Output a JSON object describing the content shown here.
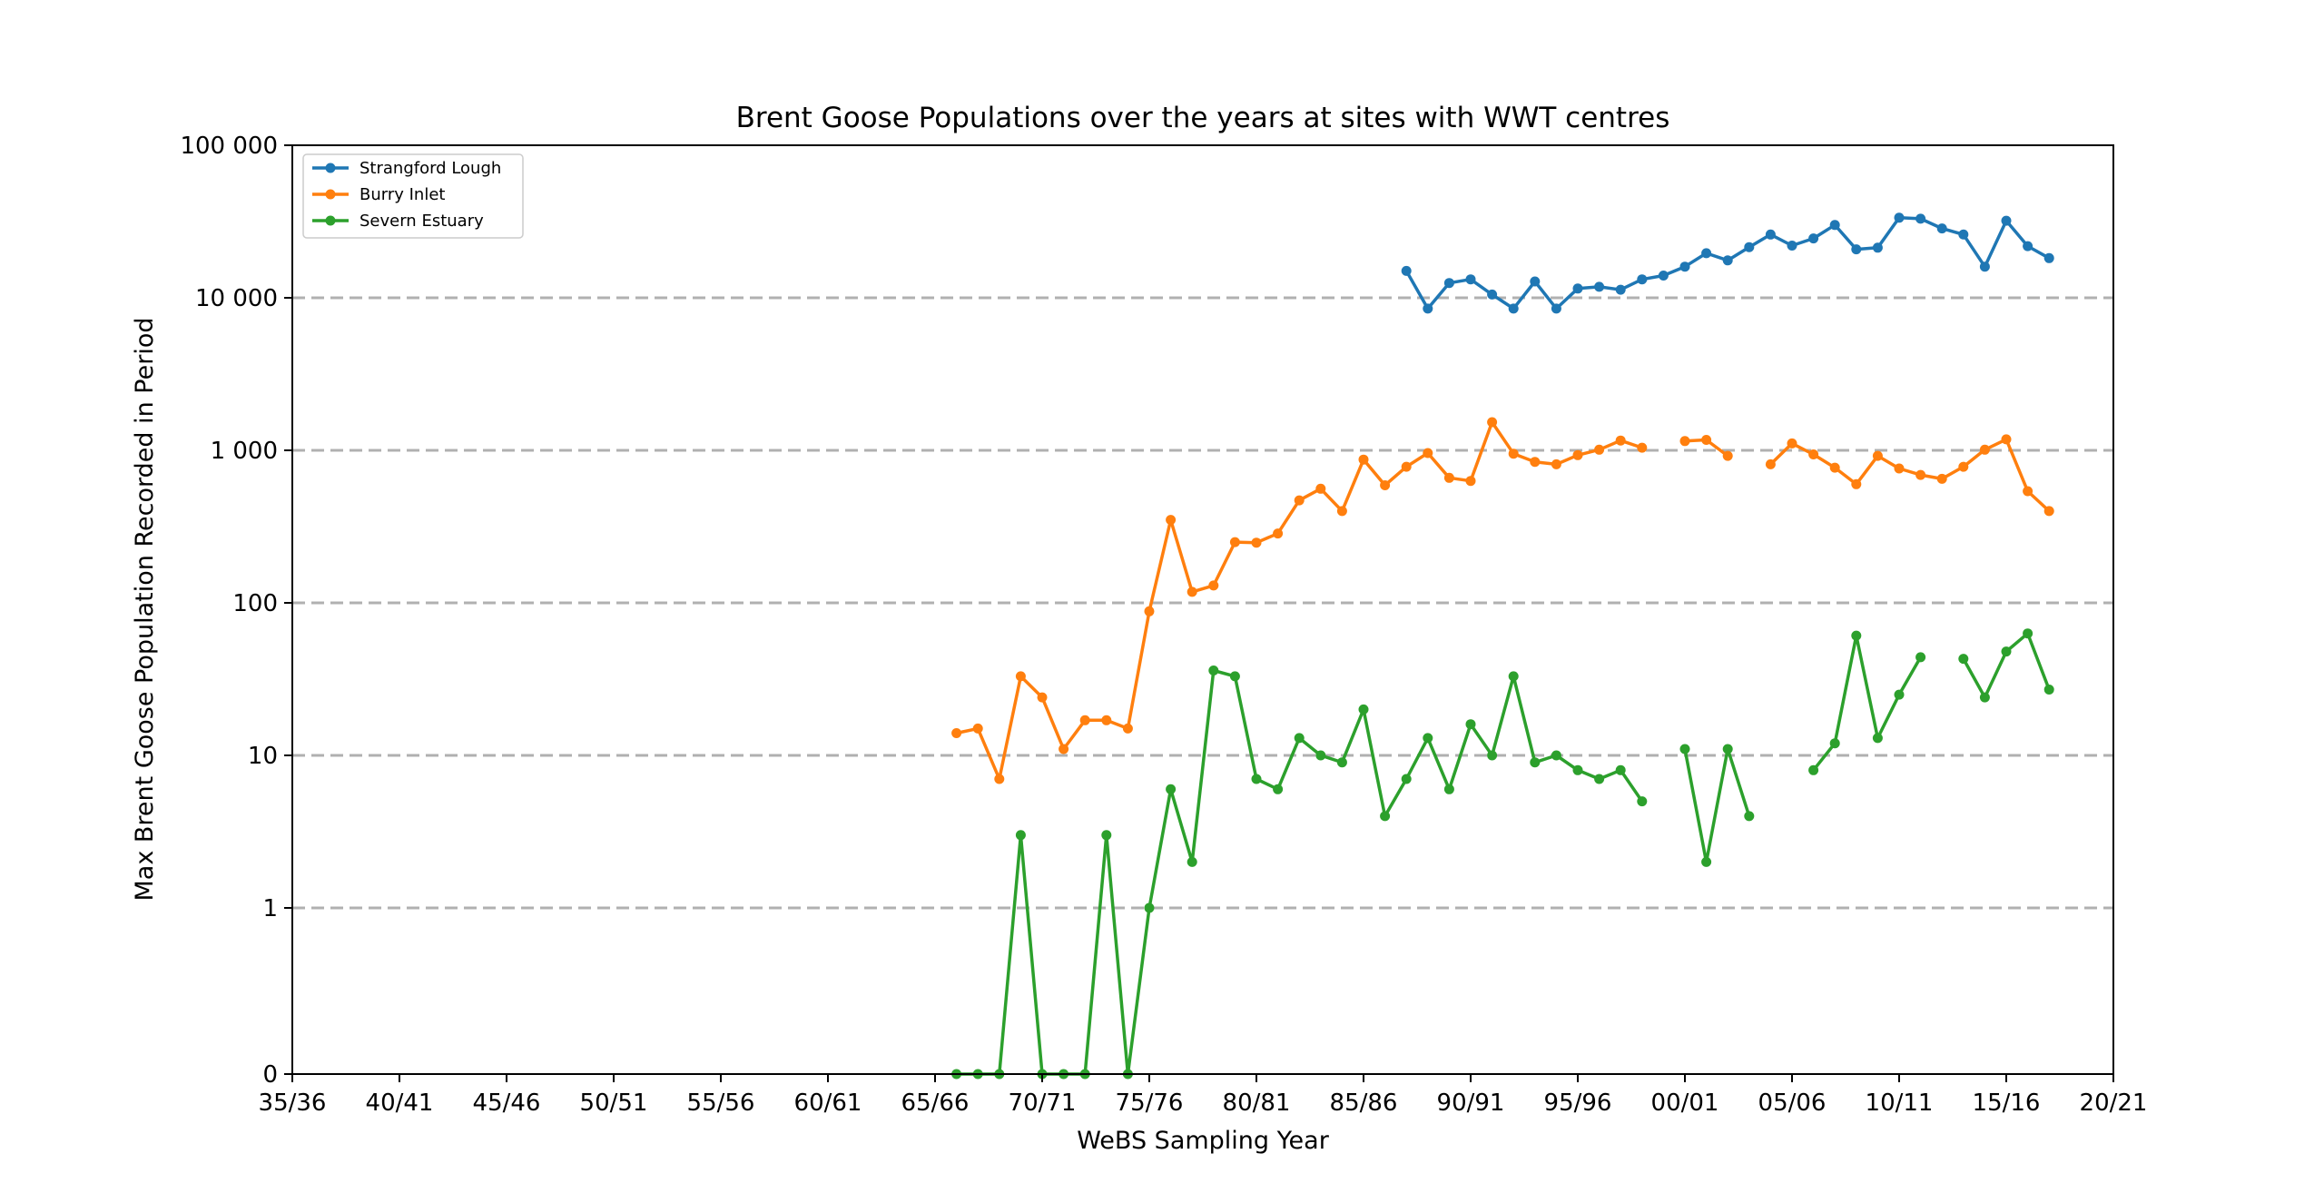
{
  "chart_data": {
    "type": "line",
    "title": "Brent Goose Populations over the years at sites with WWT centres",
    "xlabel": "WeBS Sampling Year",
    "ylabel": "Max Brent Goose Population Recorded in Period",
    "x_tick_labels": [
      "35/36",
      "40/41",
      "45/46",
      "50/51",
      "55/56",
      "60/61",
      "65/66",
      "70/71",
      "75/76",
      "80/81",
      "85/86",
      "90/91",
      "95/96",
      "00/01",
      "05/06",
      "10/11",
      "15/16",
      "20/21"
    ],
    "x_tick_start_years": [
      1935,
      1940,
      1945,
      1950,
      1955,
      1960,
      1965,
      1970,
      1975,
      1980,
      1985,
      1990,
      1995,
      2000,
      2005,
      2010,
      2015,
      2020
    ],
    "xlim": [
      1935,
      2020
    ],
    "y_scale": "symlog",
    "y_tick_labels": [
      "0",
      "1",
      "10",
      "100",
      "1 000",
      "10 000",
      "100 000"
    ],
    "y_tick_values": [
      0,
      1,
      10,
      100,
      1000,
      10000,
      100000
    ],
    "ylim": [
      0,
      100000
    ],
    "grid": "horizontal-dashed",
    "legend_position": "top-left",
    "series": [
      {
        "name": "Strangford Lough",
        "color": "#1f77b4",
        "points": [
          [
            1987,
            15000
          ],
          [
            1988,
            8500
          ],
          [
            1989,
            12500
          ],
          [
            1990,
            13200
          ],
          [
            1991,
            10500
          ],
          [
            1992,
            8500
          ],
          [
            1993,
            12800
          ],
          [
            1994,
            8500
          ],
          [
            1995,
            11500
          ],
          [
            1996,
            11800
          ],
          [
            1997,
            11300
          ],
          [
            1998,
            13200
          ],
          [
            1999,
            14000
          ],
          [
            2000,
            16000
          ],
          [
            2001,
            19600
          ],
          [
            2002,
            17600
          ],
          [
            2003,
            21500
          ],
          [
            2004,
            26000
          ],
          [
            2005,
            22000
          ],
          [
            2006,
            24500
          ],
          [
            2007,
            30000
          ],
          [
            2008,
            20800
          ],
          [
            2009,
            21300
          ],
          [
            2010,
            33500
          ],
          [
            2011,
            33000
          ],
          [
            2012,
            28500
          ],
          [
            2013,
            26000
          ],
          [
            2014,
            16000
          ],
          [
            2015,
            32000
          ],
          [
            2016,
            21800
          ],
          [
            2017,
            18200
          ]
        ]
      },
      {
        "name": "Burry Inlet",
        "color": "#ff7f0e",
        "points": [
          [
            1966,
            14
          ],
          [
            1967,
            15
          ],
          [
            1968,
            7
          ],
          [
            1969,
            33
          ],
          [
            1970,
            24
          ],
          [
            1971,
            11
          ],
          [
            1972,
            17
          ],
          [
            1973,
            17
          ],
          [
            1974,
            15
          ],
          [
            1975,
            88
          ],
          [
            1976,
            350
          ],
          [
            1977,
            118
          ],
          [
            1978,
            130
          ],
          [
            1979,
            250
          ],
          [
            1980,
            248
          ],
          [
            1981,
            285
          ],
          [
            1982,
            470
          ],
          [
            1983,
            560
          ],
          [
            1984,
            400
          ],
          [
            1985,
            870
          ],
          [
            1986,
            590
          ],
          [
            1987,
            780
          ],
          [
            1988,
            960
          ],
          [
            1989,
            660
          ],
          [
            1990,
            630
          ],
          [
            1991,
            1530
          ],
          [
            1992,
            950
          ],
          [
            1993,
            840
          ],
          [
            1994,
            810
          ],
          [
            1995,
            930
          ],
          [
            1996,
            1010
          ],
          [
            1997,
            1160
          ],
          [
            1998,
            1040
          ],
          null,
          [
            2000,
            1150
          ],
          [
            2001,
            1170
          ],
          [
            2002,
            920
          ],
          null,
          [
            2004,
            810
          ],
          [
            2005,
            1110
          ],
          [
            2006,
            940
          ],
          [
            2007,
            770
          ],
          [
            2008,
            600
          ],
          [
            2009,
            920
          ],
          [
            2010,
            760
          ],
          [
            2011,
            690
          ],
          [
            2012,
            650
          ],
          [
            2013,
            780
          ],
          [
            2014,
            1010
          ],
          [
            2015,
            1180
          ],
          [
            2016,
            540
          ],
          [
            2017,
            400
          ]
        ]
      },
      {
        "name": "Severn Estuary",
        "color": "#2ca02c",
        "points": [
          [
            1966,
            0
          ],
          [
            1967,
            0
          ],
          [
            1968,
            0
          ],
          [
            1969,
            3
          ],
          [
            1970,
            0
          ],
          [
            1971,
            0
          ],
          [
            1972,
            0
          ],
          [
            1973,
            3
          ],
          [
            1974,
            0
          ],
          [
            1975,
            1
          ],
          [
            1976,
            6
          ],
          [
            1977,
            2
          ],
          [
            1978,
            36
          ],
          [
            1979,
            33
          ],
          [
            1980,
            7
          ],
          [
            1981,
            6
          ],
          [
            1982,
            13
          ],
          [
            1983,
            10
          ],
          [
            1984,
            9
          ],
          [
            1985,
            20
          ],
          [
            1986,
            4
          ],
          [
            1987,
            7
          ],
          [
            1988,
            13
          ],
          [
            1989,
            6
          ],
          [
            1990,
            16
          ],
          [
            1991,
            10
          ],
          [
            1992,
            33
          ],
          [
            1993,
            9
          ],
          [
            1994,
            10
          ],
          [
            1995,
            8
          ],
          [
            1996,
            7
          ],
          [
            1997,
            8
          ],
          [
            1998,
            5
          ],
          null,
          [
            2000,
            11
          ],
          [
            2001,
            2
          ],
          [
            2002,
            11
          ],
          [
            2003,
            4
          ],
          null,
          [
            2006,
            8
          ],
          [
            2007,
            12
          ],
          [
            2008,
            61
          ],
          [
            2009,
            13
          ],
          [
            2010,
            25
          ],
          [
            2011,
            44
          ],
          null,
          [
            2013,
            43
          ],
          [
            2014,
            24
          ],
          [
            2015,
            48
          ],
          [
            2016,
            63
          ],
          [
            2017,
            27
          ]
        ]
      }
    ]
  }
}
